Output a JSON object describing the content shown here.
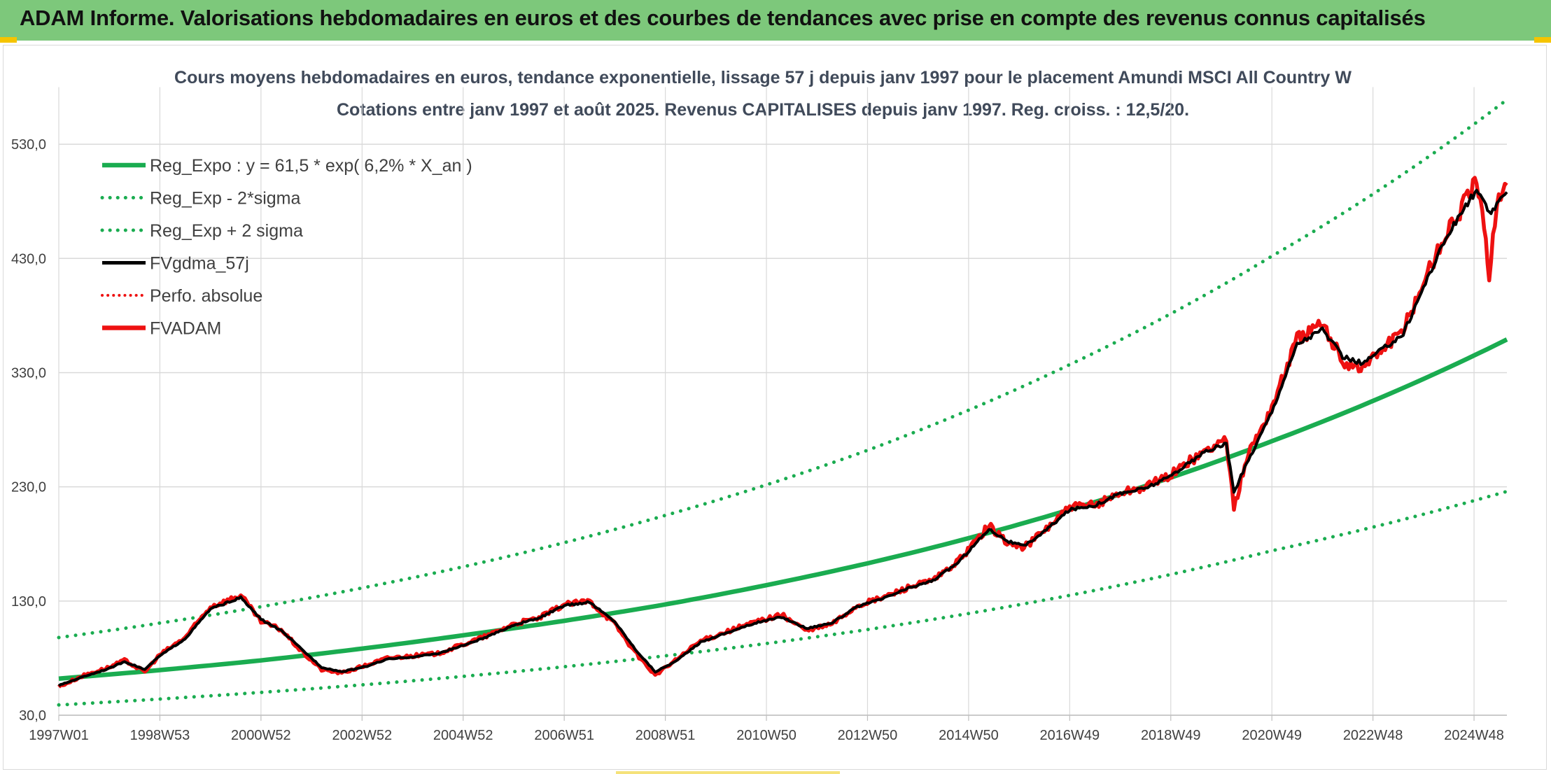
{
  "header": {
    "title": "ADAM Informe. Valorisations hebdomadaires en euros et des courbes de tendances avec prise en compte des revenus connus capitalisés"
  },
  "colors": {
    "header_bg": "#7dc87b",
    "reg_green": "#1aac50",
    "fv_black": "#000000",
    "fvadam_red": "#ee1111",
    "grid": "#d9d9d9"
  },
  "chart_data": {
    "type": "line",
    "title": "Cours moyens hebdomadaires en euros, tendance exponentielle, lissage 57 j depuis janv 1997 pour le placement Amundi MSCI All Country W",
    "subtitle": "Cotations entre janv 1997 et août 2025. Revenus CAPITALISES depuis janv 1997. Reg. croiss. : 12,5/20.",
    "ylim": [
      30,
      580
    ],
    "yticks": [
      "30,0",
      "130,0",
      "230,0",
      "330,0",
      "430,0",
      "530,0"
    ],
    "x_range_years": [
      1997.0,
      2025.65
    ],
    "xticks": [
      {
        "label": "1997W01",
        "year": 1997.0
      },
      {
        "label": "1998W53",
        "year": 1999.0
      },
      {
        "label": "2000W52",
        "year": 2001.0
      },
      {
        "label": "2002W52",
        "year": 2003.0
      },
      {
        "label": "2004W52",
        "year": 2005.0
      },
      {
        "label": "2006W51",
        "year": 2007.0
      },
      {
        "label": "2008W51",
        "year": 2009.0
      },
      {
        "label": "2010W50",
        "year": 2011.0
      },
      {
        "label": "2012W50",
        "year": 2013.0
      },
      {
        "label": "2014W50",
        "year": 2015.0
      },
      {
        "label": "2016W49",
        "year": 2017.0
      },
      {
        "label": "2018W49",
        "year": 2019.0
      },
      {
        "label": "2020W49",
        "year": 2021.0
      },
      {
        "label": "2022W48",
        "year": 2023.0
      },
      {
        "label": "2024W48",
        "year": 2025.0
      }
    ],
    "legend": [
      {
        "label": "Reg_Expo : y = 61,5 * exp( 6,2% *  X_an )",
        "style": "solid-green"
      },
      {
        "label": "Reg_Exp - 2*sigma",
        "style": "dotted-green"
      },
      {
        "label": "Reg_Exp + 2 sigma",
        "style": "dotted-green"
      },
      {
        "label": "FVgdma_57j",
        "style": "solid-black"
      },
      {
        "label": "Perfo. absolue",
        "style": "dotted-red"
      },
      {
        "label": "FVADAM",
        "style": "solid-red"
      }
    ],
    "series": [
      {
        "name": "Reg_Expo : y = 61,5 * exp( 6,2% *  X_an )",
        "x": [
          1997.0,
          2001.0,
          2005.0,
          2009.0,
          2013.0,
          2017.0,
          2021.0,
          2025.65
        ],
        "values": [
          62,
          78,
          100,
          127,
          163,
          210,
          270,
          359
        ]
      },
      {
        "name": "Reg_Exp - 2*sigma",
        "x": [
          1997.0,
          2001.0,
          2005.0,
          2009.0,
          2013.0,
          2017.0,
          2021.0,
          2025.65
        ],
        "values": [
          39,
          50,
          64,
          82,
          105,
          135,
          174,
          226
        ]
      },
      {
        "name": "Reg_Exp + 2 sigma",
        "x": [
          1997.0,
          2001.0,
          2005.0,
          2009.0,
          2013.0,
          2017.0,
          2021.0,
          2025.65
        ],
        "values": [
          98,
          125,
          160,
          205,
          262,
          337,
          432,
          569
        ]
      },
      {
        "name": "FVADAM",
        "x": [
          1997.0,
          1997.5,
          1998.0,
          1998.3,
          1998.7,
          1999.0,
          1999.5,
          2000.0,
          2000.6,
          2001.0,
          2001.4,
          2001.8,
          2002.2,
          2002.6,
          2003.1,
          2003.5,
          2004.0,
          2004.5,
          2005.0,
          2005.5,
          2006.0,
          2006.5,
          2007.0,
          2007.5,
          2008.0,
          2008.4,
          2008.8,
          2009.2,
          2009.7,
          2010.2,
          2010.8,
          2011.3,
          2011.8,
          2012.3,
          2012.8,
          2013.3,
          2013.8,
          2014.3,
          2014.8,
          2015.4,
          2015.8,
          2016.1,
          2016.5,
          2017.0,
          2017.5,
          2018.0,
          2018.5,
          2018.9,
          2019.3,
          2019.7,
          2020.1,
          2020.25,
          2020.5,
          2021.0,
          2021.5,
          2022.0,
          2022.4,
          2022.8,
          2023.2,
          2023.6,
          2024.0,
          2024.4,
          2024.8,
          2025.05,
          2025.2,
          2025.3,
          2025.45,
          2025.65
        ],
        "values": [
          55,
          65,
          72,
          78,
          68,
          83,
          98,
          125,
          135,
          112,
          105,
          86,
          70,
          67,
          74,
          80,
          82,
          84,
          92,
          100,
          110,
          115,
          127,
          130,
          110,
          85,
          65,
          78,
          95,
          103,
          112,
          118,
          104,
          110,
          126,
          133,
          142,
          148,
          165,
          196,
          180,
          177,
          192,
          212,
          214,
          225,
          230,
          238,
          250,
          262,
          272,
          210,
          256,
          300,
          360,
          372,
          340,
          334,
          352,
          366,
          410,
          448,
          478,
          498,
          455,
          418,
          480,
          494
        ]
      },
      {
        "name": "FVgdma_57j",
        "x": [
          1997.0,
          1997.5,
          1998.0,
          1998.3,
          1998.7,
          1999.0,
          1999.5,
          2000.0,
          2000.6,
          2001.0,
          2001.4,
          2001.8,
          2002.2,
          2002.6,
          2003.1,
          2003.5,
          2004.0,
          2004.5,
          2005.0,
          2005.5,
          2006.0,
          2006.5,
          2007.0,
          2007.5,
          2008.0,
          2008.4,
          2008.8,
          2009.2,
          2009.7,
          2010.2,
          2010.8,
          2011.3,
          2011.8,
          2012.3,
          2012.8,
          2013.3,
          2013.8,
          2014.3,
          2014.8,
          2015.4,
          2015.8,
          2016.1,
          2016.5,
          2017.0,
          2017.5,
          2018.0,
          2018.5,
          2018.9,
          2019.3,
          2019.7,
          2020.1,
          2020.25,
          2020.5,
          2021.0,
          2021.5,
          2022.0,
          2022.4,
          2022.8,
          2023.2,
          2023.6,
          2024.0,
          2024.4,
          2024.8,
          2025.05,
          2025.2,
          2025.3,
          2025.45,
          2025.65
        ],
        "values": [
          56,
          64,
          71,
          77,
          70,
          82,
          97,
          123,
          133,
          114,
          104,
          88,
          72,
          68,
          73,
          79,
          81,
          84,
          91,
          99,
          109,
          115,
          126,
          129,
          112,
          88,
          68,
          77,
          94,
          102,
          111,
          116,
          106,
          111,
          125,
          132,
          141,
          148,
          164,
          193,
          182,
          178,
          191,
          210,
          214,
          224,
          229,
          237,
          249,
          261,
          268,
          225,
          250,
          296,
          355,
          368,
          344,
          338,
          351,
          364,
          405,
          444,
          474,
          490,
          478,
          470,
          476,
          488
        ]
      }
    ]
  }
}
